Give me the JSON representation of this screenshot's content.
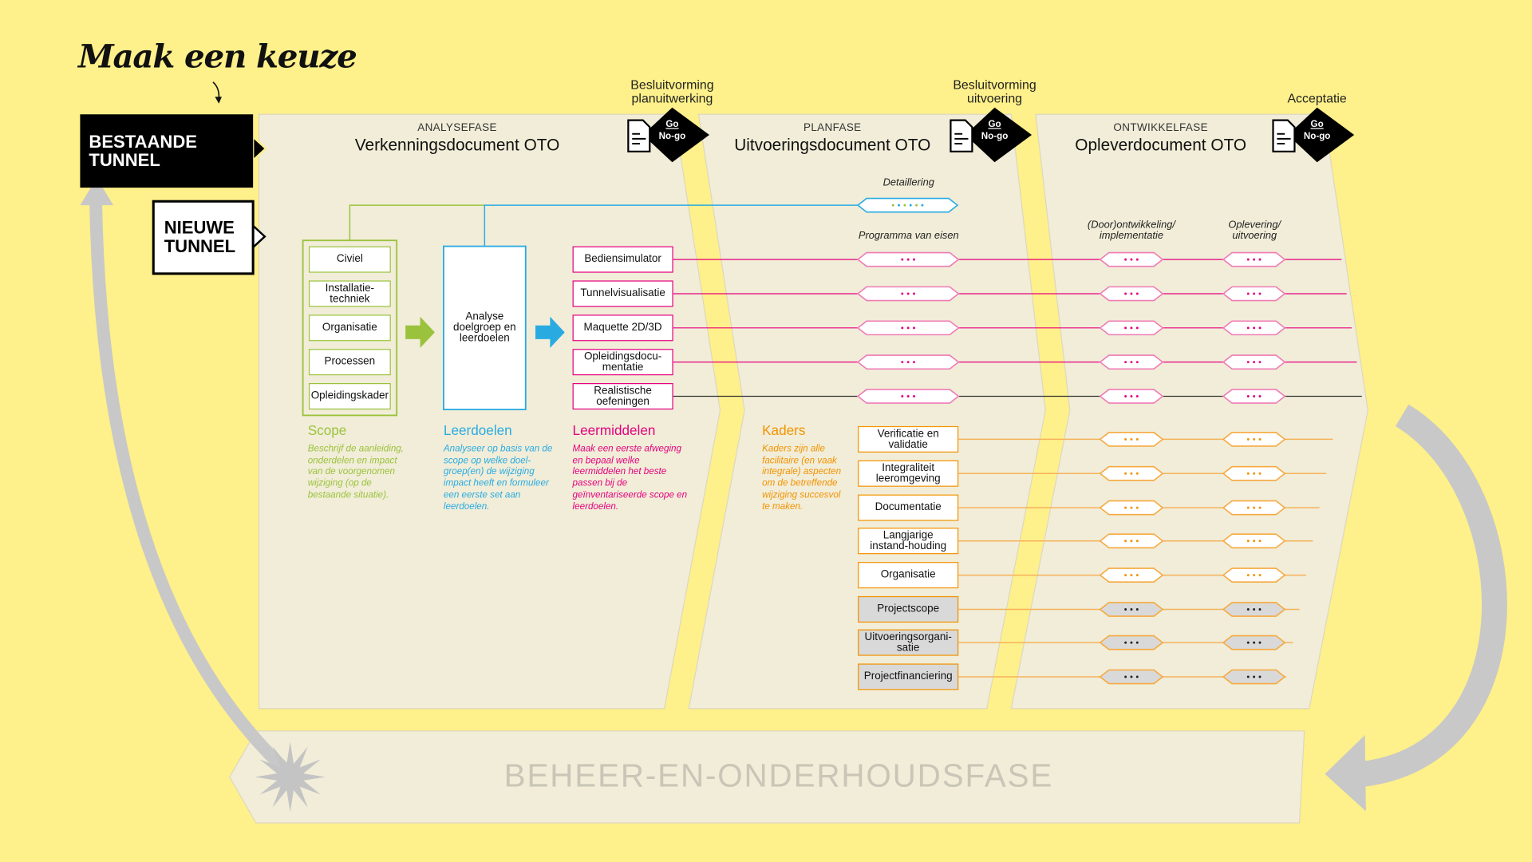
{
  "heading": "Maak een keuze",
  "tunnels": {
    "existing": "BESTAANDE TUNNEL",
    "new": "NIEUWE TUNNEL"
  },
  "phases": [
    {
      "label": "ANALYSEFASE",
      "document": "Verkenningsdocument OTO"
    },
    {
      "label": "PLANFASE",
      "document": "Uitvoeringsdocument OTO"
    },
    {
      "label": "ONTWIKKELFASE",
      "document": "Opleverdocument OTO"
    }
  ],
  "decisions": [
    {
      "label": "Besluitvorming planuitwerking",
      "go": "Go",
      "nogo": "No-go"
    },
    {
      "label": "Besluitvorming uitvoering",
      "go": "Go",
      "nogo": "No-go"
    },
    {
      "label": "Acceptatie",
      "go": "Go",
      "nogo": "No-go"
    }
  ],
  "scope": {
    "title": "Scope",
    "description": "Beschrijf de aanleiding, onderdelen en impact van de voorgenomen wijziging (op de bestaande situatie).",
    "items": [
      "Civiel",
      "Installatie-techniek",
      "Organisatie",
      "Processen",
      "Opleidingskader"
    ]
  },
  "leerdoelen": {
    "title": "Leerdoelen",
    "box": "Analyse doelgroep en leerdoelen",
    "description": "Analyseer op basis van de scope op welke doel-groep(en) de wijziging impact heeft en formuleer een eerste set aan leerdoelen."
  },
  "leermiddelen": {
    "title": "Leermiddelen",
    "description": "Maak een eerste afweging en bepaal welke leermiddelen het beste passen bij de geïnventariseerde scope en leerdoelen.",
    "items": [
      "Bediensimulator",
      "Tunnelvisualisatie",
      "Maquette 2D/3D",
      "Opleidingsdocu-mentatie",
      "Realistische oefeningen"
    ]
  },
  "kaders": {
    "title": "Kaders",
    "description": "Kaders zijn alle facilitaire (en vaak integrale) aspecten om de betreffende wijziging succesvol te maken.",
    "items": [
      {
        "label": "Verificatie en validatie",
        "grey": false
      },
      {
        "label": "Integraliteit leeromgeving",
        "grey": false
      },
      {
        "label": "Documentatie",
        "grey": false
      },
      {
        "label": "Langjarige instand-houding",
        "grey": false
      },
      {
        "label": "Organisatie",
        "grey": false
      },
      {
        "label": "Projectscope",
        "grey": true
      },
      {
        "label": "Uitvoeringsorgani-satie",
        "grey": true
      },
      {
        "label": "Projectfinanciering",
        "grey": true
      }
    ]
  },
  "columns": {
    "detaillering": "Detaillering",
    "pve": "Programma van eisen",
    "ontwikkeling": "(Door)ontwikkeling/ implementatie",
    "oplevering": "Oplevering/ uitvoering"
  },
  "maintenance": "BEHEER-EN-ONDERHOUDSFASE",
  "colors": {
    "background": "#fef08a",
    "panel": "#f1edd8",
    "scope": "#9bc23c",
    "leerdoelen": "#29abe2",
    "leermiddelen": "#e5007e",
    "kaders": "#f39200",
    "cycle_arrow": "#c8c8c8"
  }
}
